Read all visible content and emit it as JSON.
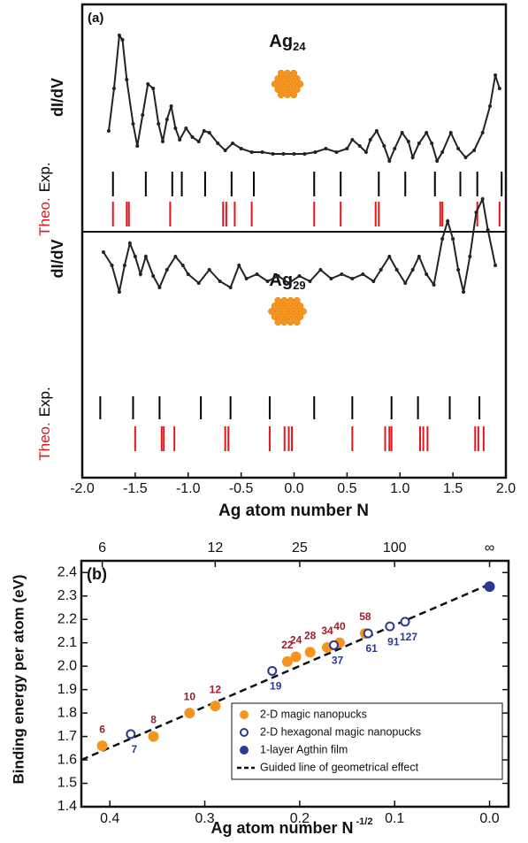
{
  "chart_data": [
    {
      "type": "line",
      "panel_label": "(a)",
      "title": "Ag",
      "title_sub": "24",
      "y_label": "dI/dV",
      "xlim": [
        -2,
        2
      ],
      "ylim": [
        0,
        180
      ],
      "series": [
        {
          "color": "#222222",
          "x": [
            -1.75,
            -1.7,
            -1.65,
            -1.62,
            -1.58,
            -1.52,
            -1.48,
            -1.43,
            -1.38,
            -1.33,
            -1.28,
            -1.24,
            -1.2,
            -1.16,
            -1.12,
            -1.08,
            -1.02,
            -0.96,
            -0.9,
            -0.85,
            -0.8,
            -0.72,
            -0.65,
            -0.58,
            -0.5,
            -0.4,
            -0.3,
            -0.2,
            -0.1,
            0,
            0.1,
            0.2,
            0.3,
            0.4,
            0.5,
            0.55,
            0.62,
            0.68,
            0.72,
            0.78,
            0.85,
            0.9,
            0.95,
            1.02,
            1.08,
            1.12,
            1.18,
            1.25,
            1.3,
            1.35,
            1.4,
            1.48,
            1.55,
            1.62,
            1.7,
            1.78,
            1.85,
            1.9,
            1.94
          ],
          "values": [
            42,
            90,
            150,
            145,
            100,
            50,
            25,
            60,
            95,
            90,
            50,
            30,
            55,
            70,
            45,
            32,
            45,
            35,
            30,
            42,
            40,
            28,
            20,
            28,
            22,
            18,
            18,
            16,
            16,
            16,
            16,
            18,
            22,
            18,
            22,
            32,
            25,
            18,
            32,
            42,
            25,
            8,
            22,
            40,
            30,
            12,
            28,
            40,
            28,
            8,
            18,
            40,
            22,
            12,
            20,
            40,
            70,
            105,
            90
          ]
        }
      ],
      "tick_sets": [
        {
          "name": "Exp.",
          "color": "#000000",
          "x": [
            -1.71,
            -1.4,
            -1.15,
            -1.06,
            -0.84,
            -0.59,
            -0.38,
            0.19,
            0.44,
            0.8,
            1.05,
            1.33,
            1.57,
            1.73,
            1.96
          ]
        },
        {
          "name": "Theo.",
          "color": "#e8141c",
          "x": [
            -1.71,
            -1.58,
            -1.56,
            -1.17,
            -0.67,
            -0.64,
            -0.56,
            -0.4,
            0.19,
            0.44,
            0.77,
            0.8,
            1.38,
            1.4,
            1.73,
            1.94
          ]
        }
      ]
    },
    {
      "type": "line",
      "title": "Ag",
      "title_sub": "29",
      "y_label": "dI/dV",
      "x_label": "Ag atom number N",
      "xlim": [
        -2,
        2
      ],
      "xticks": [
        {
          "value": -2,
          "label": "-2.0"
        },
        -1.5,
        {
          "value": -1,
          "label": "-1.0"
        },
        -0.5,
        {
          "value": 0,
          "label": "0.0"
        },
        0.5,
        {
          "value": 1,
          "label": "1.0"
        },
        1.5,
        {
          "value": 2,
          "label": "2.0"
        }
      ],
      "ylim": [
        0,
        125
      ],
      "series": [
        {
          "color": "#222222",
          "x": [
            -1.8,
            -1.72,
            -1.65,
            -1.6,
            -1.55,
            -1.5,
            -1.45,
            -1.4,
            -1.33,
            -1.27,
            -1.2,
            -1.12,
            -1.05,
            -1.0,
            -0.9,
            -0.8,
            -0.7,
            -0.6,
            -0.52,
            -0.45,
            -0.35,
            -0.25,
            -0.15,
            -0.05,
            0.05,
            0.15,
            0.25,
            0.35,
            0.45,
            0.55,
            0.65,
            0.75,
            0.82,
            0.9,
            0.97,
            1.05,
            1.12,
            1.18,
            1.25,
            1.32,
            1.4,
            1.45,
            1.5,
            1.55,
            1.6,
            1.66,
            1.72,
            1.78,
            1.83,
            1.9
          ],
          "values": [
            60,
            45,
            15,
            45,
            70,
            55,
            35,
            55,
            33,
            20,
            40,
            55,
            45,
            35,
            25,
            40,
            27,
            20,
            45,
            30,
            35,
            27,
            33,
            25,
            33,
            27,
            40,
            30,
            35,
            30,
            35,
            27,
            40,
            55,
            40,
            25,
            40,
            55,
            35,
            23,
            75,
            95,
            75,
            40,
            15,
            55,
            105,
            120,
            85,
            45
          ]
        }
      ],
      "tick_sets": [
        {
          "name": "Exp.",
          "color": "#000000",
          "x": [
            -1.83,
            -1.52,
            -1.27,
            -0.88,
            -0.6,
            -0.23,
            0.19,
            0.55,
            0.92,
            1.17,
            1.47,
            1.75
          ]
        },
        {
          "name": "Theo.",
          "color": "#e8141c",
          "x": [
            -1.5,
            -1.25,
            -1.23,
            -1.13,
            -0.65,
            -0.62,
            -0.23,
            -0.09,
            -0.05,
            -0.02,
            0.55,
            0.86,
            0.9,
            0.92,
            1.19,
            1.22,
            1.26,
            1.71,
            1.74,
            1.79
          ]
        }
      ]
    },
    {
      "type": "scatter",
      "panel_label": "(b)",
      "x_label": "Ag atom number N",
      "x_label_sup": "-1/2",
      "y_label": "Binding energy per atom (eV)",
      "xlim": [
        0.43,
        -0.02
      ],
      "xticks": [
        0.4,
        0.3,
        0.2,
        0.1,
        {
          "value": 0,
          "label": "0.0"
        }
      ],
      "x2ticks": [
        {
          "value": 0.408,
          "label": "6"
        },
        {
          "value": 0.289,
          "label": "12"
        },
        {
          "value": 0.2,
          "label": "25"
        },
        {
          "value": 0.1,
          "label": "100"
        },
        {
          "value": 0,
          "label": "∞"
        }
      ],
      "ylim": [
        1.4,
        2.45
      ],
      "yticks": [
        2.4,
        2.3,
        2.2,
        2.1,
        {
          "value": 2,
          "label": "2.0"
        },
        1.9,
        1.8,
        1.7,
        1.6,
        1.5,
        1.4
      ],
      "legend": "lower right",
      "series": [
        {
          "name": "2-D magic nanopucks",
          "color": "#f7941d",
          "marker": "filled",
          "label_color": "#a01c2c",
          "x": [
            0.408,
            0.354,
            0.316,
            0.289,
            0.213,
            0.204,
            0.189,
            0.171,
            0.158,
            0.131
          ],
          "values": [
            1.66,
            1.7,
            1.8,
            1.83,
            2.02,
            2.04,
            2.06,
            2.08,
            2.1,
            2.14
          ],
          "point_labels": [
            "6",
            "8",
            "10",
            "12",
            "22",
            "24",
            "28",
            "34",
            "40",
            "58"
          ]
        },
        {
          "name": "2-D hexagonal magic nanopucks",
          "color": "#2b3990",
          "marker": "open",
          "label_color": "#2b3990",
          "x": [
            0.378,
            0.229,
            0.164,
            0.128,
            0.105,
            0.089
          ],
          "values": [
            1.71,
            1.98,
            2.09,
            2.14,
            2.17,
            2.19
          ],
          "point_labels": [
            "7",
            "19",
            "37",
            "61",
            "91",
            "127"
          ]
        },
        {
          "name": "1-layer Agthin film",
          "color": "#2b3990",
          "marker": "filled",
          "x": [
            0
          ],
          "values": [
            2.34
          ]
        },
        {
          "name": "Guided line of geometrical effect",
          "color": "#111111",
          "marker": "dashed",
          "x": [
            0.43,
            0
          ],
          "values": [
            1.6,
            2.35
          ]
        }
      ]
    }
  ]
}
